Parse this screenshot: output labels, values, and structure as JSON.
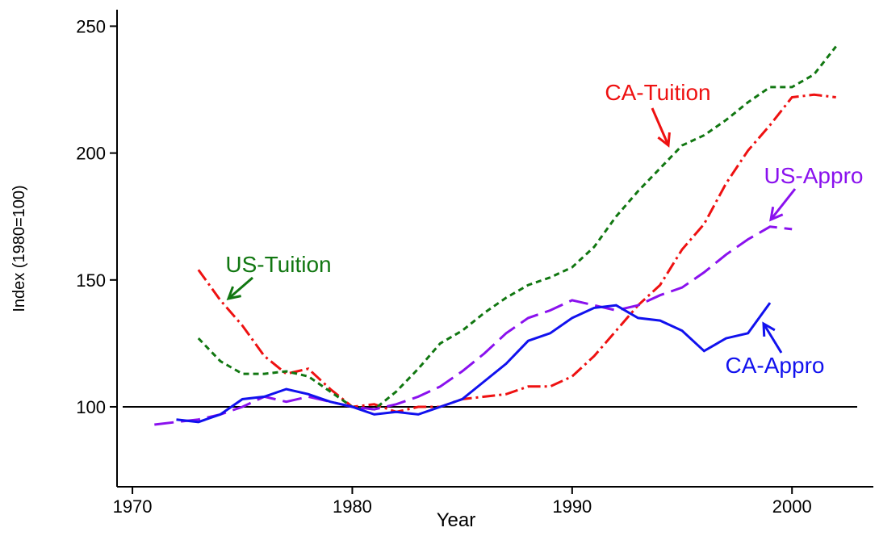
{
  "chart_data": {
    "type": "line",
    "xlabel": "Year",
    "ylabel": "Index (1980=100)",
    "xlim": [
      1969.3,
      2003.7
    ],
    "ylim": [
      68.5,
      256.5
    ],
    "xticks": [
      1970,
      1980,
      1990,
      2000
    ],
    "yticks": [
      100,
      150,
      200,
      250
    ],
    "hline": 100,
    "series": [
      {
        "name": "CA-Tuition",
        "color": "#ee1111",
        "dash": "16 5 3 5",
        "x": [
          1973,
          1974,
          1975,
          1976,
          1977,
          1978,
          1979,
          1980,
          1981,
          1982,
          1983,
          1984,
          1985,
          1986,
          1987,
          1988,
          1989,
          1990,
          1991,
          1992,
          1993,
          1994,
          1995,
          1996,
          1997,
          1998,
          1999,
          2000,
          2001,
          2002
        ],
        "values": [
          154,
          142,
          132,
          120,
          113,
          115,
          107,
          100,
          101,
          98,
          100,
          100,
          103,
          104,
          105,
          108,
          108,
          112,
          120,
          130,
          140,
          148,
          162,
          172,
          188,
          201,
          211,
          222,
          223,
          222
        ]
      },
      {
        "name": "US-Tuition",
        "color": "#117711",
        "dash": "7 5",
        "x": [
          1973,
          1974,
          1975,
          1976,
          1977,
          1978,
          1979,
          1980,
          1981,
          1982,
          1983,
          1984,
          1985,
          1986,
          1987,
          1988,
          1989,
          1990,
          1991,
          1992,
          1993,
          1994,
          1995,
          1996,
          1997,
          1998,
          1999,
          2000,
          2001,
          2002
        ],
        "values": [
          127,
          118,
          113,
          113,
          114,
          112,
          106,
          100,
          99,
          106,
          115,
          125,
          130,
          137,
          143,
          148,
          151,
          155,
          163,
          175,
          185,
          194,
          203,
          207,
          213,
          220,
          226,
          226,
          231,
          242
        ]
      },
      {
        "name": "US-Appro",
        "color": "#8a11ee",
        "dash": "24 9",
        "x": [
          1971,
          1972,
          1973,
          1974,
          1975,
          1976,
          1977,
          1978,
          1979,
          1980,
          1981,
          1982,
          1983,
          1984,
          1985,
          1986,
          1987,
          1988,
          1989,
          1990,
          1991,
          1992,
          1993,
          1994,
          1995,
          1996,
          1997,
          1998,
          1999,
          2000
        ],
        "values": [
          93,
          94,
          95,
          97,
          100,
          104,
          102,
          104,
          102,
          100,
          99,
          101,
          104,
          108,
          114,
          121,
          129,
          135,
          138,
          142,
          140,
          138,
          140,
          144,
          147,
          153,
          160,
          166,
          171,
          170
        ]
      },
      {
        "name": "CA-Appro",
        "color": "#1111ee",
        "dash": "",
        "x": [
          1972,
          1973,
          1974,
          1975,
          1976,
          1977,
          1978,
          1979,
          1980,
          1981,
          1982,
          1983,
          1984,
          1985,
          1986,
          1987,
          1988,
          1989,
          1990,
          1991,
          1992,
          1993,
          1994,
          1995,
          1996,
          1997,
          1998,
          1999
        ],
        "values": [
          95,
          94,
          97,
          103,
          104,
          107,
          105,
          102,
          100,
          97,
          98,
          97,
          100,
          103,
          110,
          117,
          126,
          129,
          135,
          139,
          140,
          135,
          134,
          130,
          122,
          127,
          129,
          141
        ]
      }
    ]
  }
}
